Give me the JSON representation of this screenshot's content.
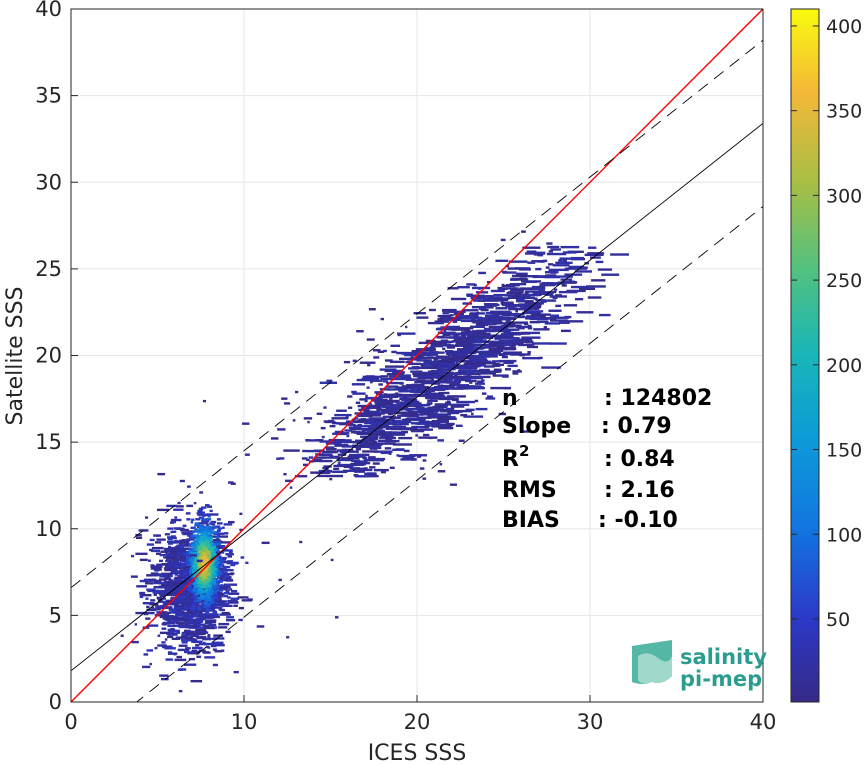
{
  "chart_data": {
    "type": "heatmap",
    "xlabel": "ICES SSS",
    "ylabel": "Satellite SSS",
    "xlim": [
      0,
      40
    ],
    "ylim": [
      0,
      40
    ],
    "xticks": [
      0,
      10,
      20,
      30,
      40
    ],
    "yticks": [
      0,
      5,
      10,
      15,
      20,
      25,
      30,
      35,
      40
    ],
    "grid": true,
    "colorbar": {
      "range": [
        1,
        410
      ],
      "ticks": [
        50,
        100,
        150,
        200,
        250,
        300,
        350,
        400
      ],
      "colormap": "parula"
    },
    "lines": [
      {
        "name": "identity",
        "slope": 1.0,
        "intercept": 0.0,
        "style": "solid",
        "color": "#ff0000"
      },
      {
        "name": "regression",
        "slope": 0.79,
        "intercept": 1.8,
        "style": "solid",
        "color": "#000000"
      },
      {
        "name": "regression-upper",
        "slope": 0.79,
        "intercept": 6.6,
        "style": "dashed",
        "color": "#000000"
      },
      {
        "name": "regression-lower",
        "slope": 0.79,
        "intercept": -3.0,
        "style": "dashed",
        "color": "#000000"
      }
    ],
    "clusters": [
      {
        "name": "low-salinity-core",
        "x": 7.5,
        "y": 8.0,
        "peak": 380
      },
      {
        "name": "low-salinity-spread",
        "x": 6.5,
        "y": 6.0,
        "peak": 60
      },
      {
        "name": "high-salinity-band",
        "x": 22.0,
        "y": 20.0,
        "peak": 40
      }
    ],
    "stats": [
      {
        "label": "n",
        "value": ": 124802"
      },
      {
        "label": "Slope",
        "value": ": 0.79"
      },
      {
        "label": "R",
        "sup": "2",
        "value": ": 0.84"
      },
      {
        "label": "RMS",
        "value": ": 2.16"
      },
      {
        "label": "BIAS",
        "value": ": -0.10"
      }
    ]
  },
  "logo": {
    "line1": "salinity",
    "line2": "pi-mep"
  }
}
